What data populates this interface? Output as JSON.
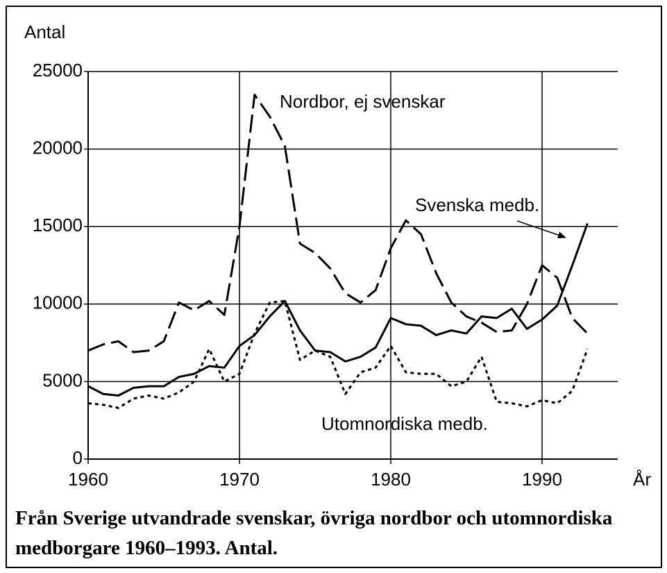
{
  "chart_data": {
    "type": "line",
    "y_label": "Antal",
    "x_label": "År",
    "caption": "Från Sverige utvandrade svenskar, övriga nordbor och utomnordiska medborgare 1960–1993. Antal.",
    "x": [
      1960,
      1961,
      1962,
      1963,
      1964,
      1965,
      1966,
      1967,
      1968,
      1969,
      1970,
      1971,
      1972,
      1973,
      1974,
      1975,
      1976,
      1977,
      1978,
      1979,
      1980,
      1981,
      1982,
      1983,
      1984,
      1985,
      1986,
      1987,
      1988,
      1989,
      1990,
      1991,
      1992,
      1993
    ],
    "series": [
      {
        "name": "Nordbor, ej svenskar",
        "color": "#000000",
        "style": "dashed",
        "values": [
          7000,
          7400,
          7600,
          6900,
          7000,
          7600,
          10100,
          9600,
          10200,
          9300,
          15000,
          23500,
          22100,
          20200,
          13900,
          13300,
          12300,
          10700,
          10100,
          10900,
          13600,
          15400,
          14500,
          12000,
          10100,
          9200,
          8800,
          8200,
          8300,
          10000,
          12500,
          11700,
          9100,
          8100
        ]
      },
      {
        "name": "Svenska medb.",
        "color": "#000000",
        "style": "solid",
        "values": [
          4700,
          4200,
          4100,
          4600,
          4700,
          4700,
          5300,
          5500,
          6000,
          5900,
          7300,
          8000,
          9200,
          10200,
          8300,
          7000,
          6900,
          6300,
          6600,
          7200,
          9100,
          8700,
          8600,
          8000,
          8300,
          8100,
          9200,
          9100,
          9700,
          8400,
          9000,
          9900,
          12500,
          15200
        ]
      },
      {
        "name": "Utomnordiska medb.",
        "color": "#000000",
        "style": "dotted",
        "values": [
          3600,
          3500,
          3300,
          3900,
          4100,
          3900,
          4300,
          5000,
          7100,
          5000,
          5500,
          8100,
          10100,
          10200,
          6400,
          7000,
          6600,
          4200,
          5600,
          5900,
          7300,
          5600,
          5500,
          5500,
          4700,
          5000,
          6600,
          3700,
          3600,
          3400,
          3800,
          3600,
          4400,
          7100
        ]
      }
    ],
    "xlim": [
      1960,
      1995
    ],
    "xticks": [
      1960,
      1970,
      1980,
      1990
    ],
    "ylim": [
      0,
      25000
    ],
    "yticks": [
      0,
      5000,
      10000,
      15000,
      20000,
      25000
    ],
    "grid": true
  }
}
